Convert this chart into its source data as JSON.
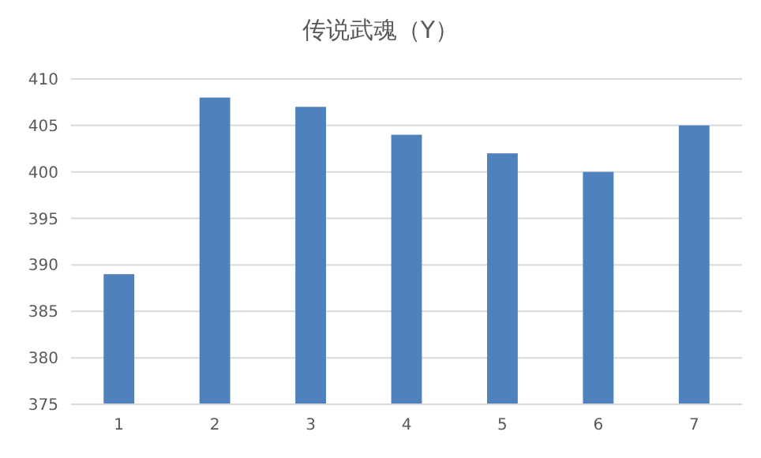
{
  "chart_data": {
    "type": "bar",
    "title": "传说武魂（Y）",
    "categories": [
      "1",
      "2",
      "3",
      "4",
      "5",
      "6",
      "7"
    ],
    "values": [
      389,
      408,
      407,
      404,
      402,
      400,
      405
    ],
    "color": "#4f81bd",
    "ylim": [
      375,
      410
    ],
    "yticks": [
      375,
      380,
      385,
      390,
      395,
      400,
      405,
      410
    ],
    "grid": "y"
  }
}
